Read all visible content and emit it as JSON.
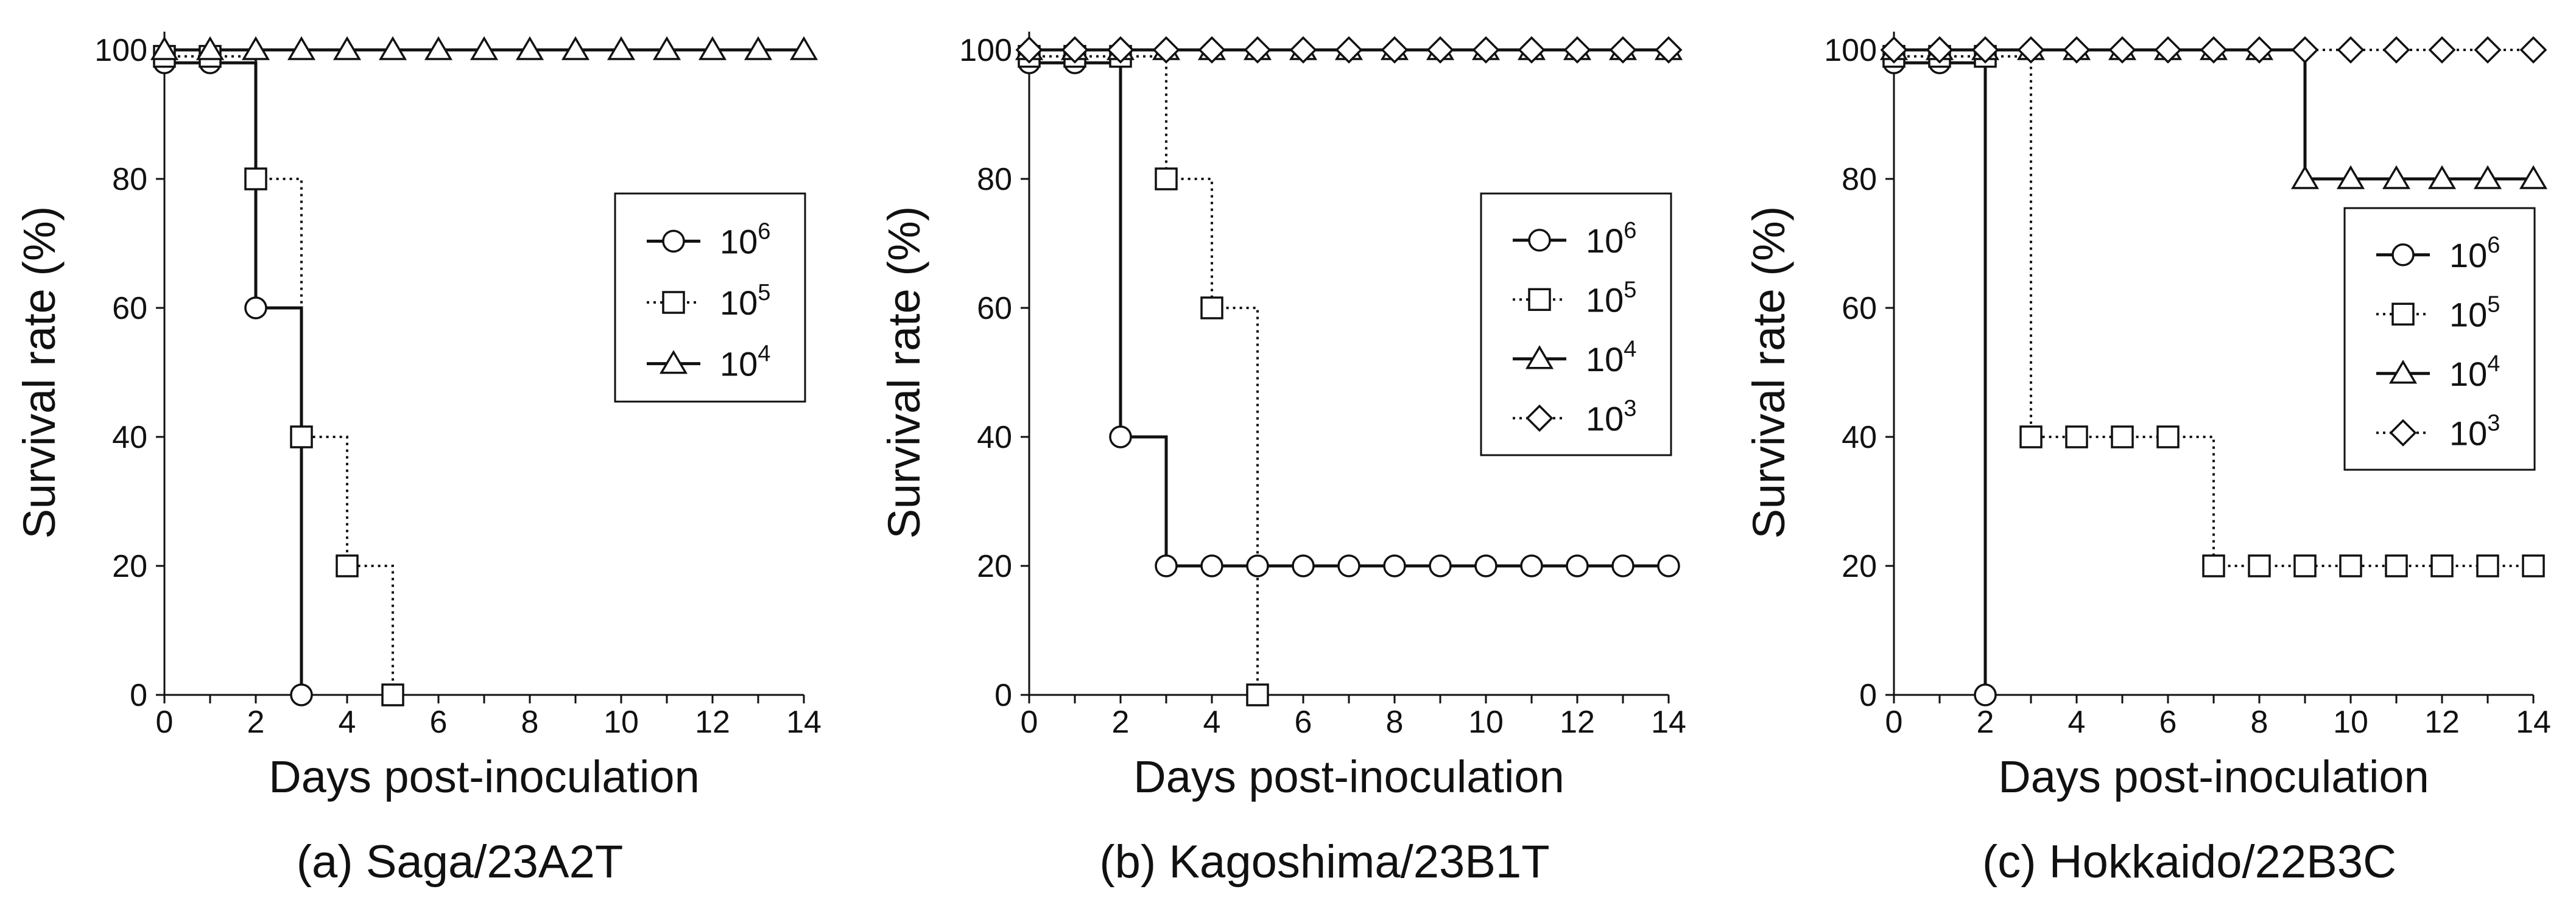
{
  "chart_data": [
    {
      "type": "line",
      "title": "(a) Saga/23A2T",
      "xlabel": "Days post-inoculation",
      "ylabel": "Survival rate (%)",
      "xlim": [
        0,
        14
      ],
      "ylim": [
        0,
        100
      ],
      "xticks": [
        0,
        2,
        4,
        6,
        8,
        10,
        12,
        14
      ],
      "yticks": [
        0,
        20,
        40,
        60,
        80,
        100
      ],
      "legend_position": "right-middle",
      "step_plot": true,
      "series": [
        {
          "name": "10^6",
          "base": "10",
          "exp": "6",
          "marker": "circle",
          "line": "solid",
          "x": [
            0,
            1,
            2,
            3
          ],
          "y": [
            98,
            98,
            60,
            0
          ]
        },
        {
          "name": "10^5",
          "base": "10",
          "exp": "5",
          "marker": "square",
          "line": "dotted",
          "x": [
            0,
            1,
            2,
            3,
            4,
            5
          ],
          "y": [
            99,
            99,
            80,
            40,
            20,
            0
          ]
        },
        {
          "name": "10^4",
          "base": "10",
          "exp": "4",
          "marker": "triangle",
          "line": "solid",
          "x": [
            0,
            1,
            2,
            3,
            4,
            5,
            6,
            7,
            8,
            9,
            10,
            11,
            12,
            13,
            14
          ],
          "y": [
            100,
            100,
            100,
            100,
            100,
            100,
            100,
            100,
            100,
            100,
            100,
            100,
            100,
            100,
            100
          ]
        }
      ]
    },
    {
      "type": "line",
      "title": "(b) Kagoshima/23B1T",
      "xlabel": "Days post-inoculation",
      "ylabel": "Survival rate (%)",
      "xlim": [
        0,
        14
      ],
      "ylim": [
        0,
        100
      ],
      "xticks": [
        0,
        2,
        4,
        6,
        8,
        10,
        12,
        14
      ],
      "yticks": [
        0,
        20,
        40,
        60,
        80,
        100
      ],
      "legend_position": "right-middle",
      "step_plot": true,
      "series": [
        {
          "name": "10^6",
          "base": "10",
          "exp": "6",
          "marker": "circle",
          "line": "solid",
          "x": [
            0,
            1,
            2,
            3,
            4,
            5,
            6,
            7,
            8,
            9,
            10,
            11,
            12,
            13,
            14
          ],
          "y": [
            98,
            98,
            40,
            20,
            20,
            20,
            20,
            20,
            20,
            20,
            20,
            20,
            20,
            20,
            20
          ]
        },
        {
          "name": "10^5",
          "base": "10",
          "exp": "5",
          "marker": "square",
          "line": "dotted",
          "x": [
            0,
            1,
            2,
            3,
            4,
            5
          ],
          "y": [
            99,
            99,
            99,
            80,
            60,
            0
          ]
        },
        {
          "name": "10^4",
          "base": "10",
          "exp": "4",
          "marker": "triangle",
          "line": "solid",
          "x": [
            0,
            1,
            2,
            3,
            4,
            5,
            6,
            7,
            8,
            9,
            10,
            11,
            12,
            13,
            14
          ],
          "y": [
            100,
            100,
            100,
            100,
            100,
            100,
            100,
            100,
            100,
            100,
            100,
            100,
            100,
            100,
            100
          ]
        },
        {
          "name": "10^3",
          "base": "10",
          "exp": "3",
          "marker": "diamond",
          "line": "dotted",
          "x": [
            0,
            1,
            2,
            3,
            4,
            5,
            6,
            7,
            8,
            9,
            10,
            11,
            12,
            13,
            14
          ],
          "y": [
            100,
            100,
            100,
            100,
            100,
            100,
            100,
            100,
            100,
            100,
            100,
            100,
            100,
            100,
            100
          ]
        }
      ]
    },
    {
      "type": "line",
      "title": "(c)  Hokkaido/22B3C",
      "xlabel": "Days post-inoculation",
      "ylabel": "Survival rate (%)",
      "xlim": [
        0,
        14
      ],
      "ylim": [
        0,
        100
      ],
      "xticks": [
        0,
        2,
        4,
        6,
        8,
        10,
        12,
        14
      ],
      "yticks": [
        0,
        20,
        40,
        60,
        80,
        100
      ],
      "legend_position": "right-middle",
      "step_plot": true,
      "series": [
        {
          "name": "10^6",
          "base": "10",
          "exp": "6",
          "marker": "circle",
          "line": "solid",
          "x": [
            0,
            1,
            2
          ],
          "y": [
            98,
            98,
            0
          ]
        },
        {
          "name": "10^5",
          "base": "10",
          "exp": "5",
          "marker": "square",
          "line": "dotted",
          "x": [
            0,
            1,
            2,
            3,
            4,
            5,
            6,
            7,
            8,
            9,
            10,
            11,
            12,
            13,
            14
          ],
          "y": [
            99,
            99,
            99,
            40,
            40,
            40,
            40,
            20,
            20,
            20,
            20,
            20,
            20,
            20,
            20
          ]
        },
        {
          "name": "10^4",
          "base": "10",
          "exp": "4",
          "marker": "triangle",
          "line": "solid",
          "x": [
            0,
            1,
            2,
            3,
            4,
            5,
            6,
            7,
            8,
            9,
            10,
            11,
            12,
            13,
            14
          ],
          "y": [
            100,
            100,
            100,
            100,
            100,
            100,
            100,
            100,
            100,
            80,
            80,
            80,
            80,
            80,
            80
          ]
        },
        {
          "name": "10^3",
          "base": "10",
          "exp": "3",
          "marker": "diamond",
          "line": "dotted",
          "x": [
            0,
            1,
            2,
            3,
            4,
            5,
            6,
            7,
            8,
            9,
            10,
            11,
            12,
            13,
            14
          ],
          "y": [
            100,
            100,
            100,
            100,
            100,
            100,
            100,
            100,
            100,
            100,
            100,
            100,
            100,
            100,
            100
          ]
        }
      ]
    }
  ]
}
